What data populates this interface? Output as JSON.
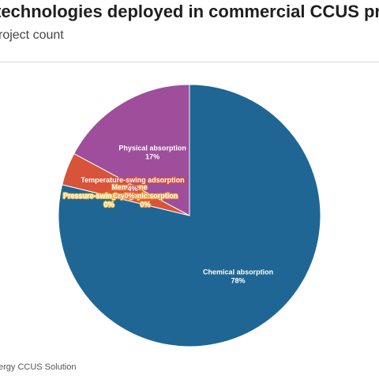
{
  "header": {
    "title": "technologies deployed in commercial CCUS pro",
    "subtitle": "roject count"
  },
  "footer": {
    "source": "ergy CCUS Solution"
  },
  "chart_data": {
    "type": "pie",
    "title": "technologies deployed in commercial CCUS pro",
    "subtitle": "roject count",
    "slices": [
      {
        "label": "Chemical absorption",
        "value": 78,
        "percent_label": "78%",
        "color": "#1f6694"
      },
      {
        "label": "Pressure-swing adsorption",
        "value": 0,
        "percent_label": "0%",
        "color": "#f2c04a"
      },
      {
        "label": "Cryogenic sorption",
        "value": 0,
        "percent_label": "0%",
        "color": "#f0a145"
      },
      {
        "label": "Membrane",
        "value": 0,
        "percent_label": "0%",
        "color": "#f0873b"
      },
      {
        "label": "Temperature-swing adsorption",
        "value": 4,
        "percent_label": "4%",
        "color": "#d7533a"
      },
      {
        "label": "Physical absorption",
        "value": 17,
        "percent_label": "17%",
        "color": "#9e4e9a"
      }
    ]
  }
}
